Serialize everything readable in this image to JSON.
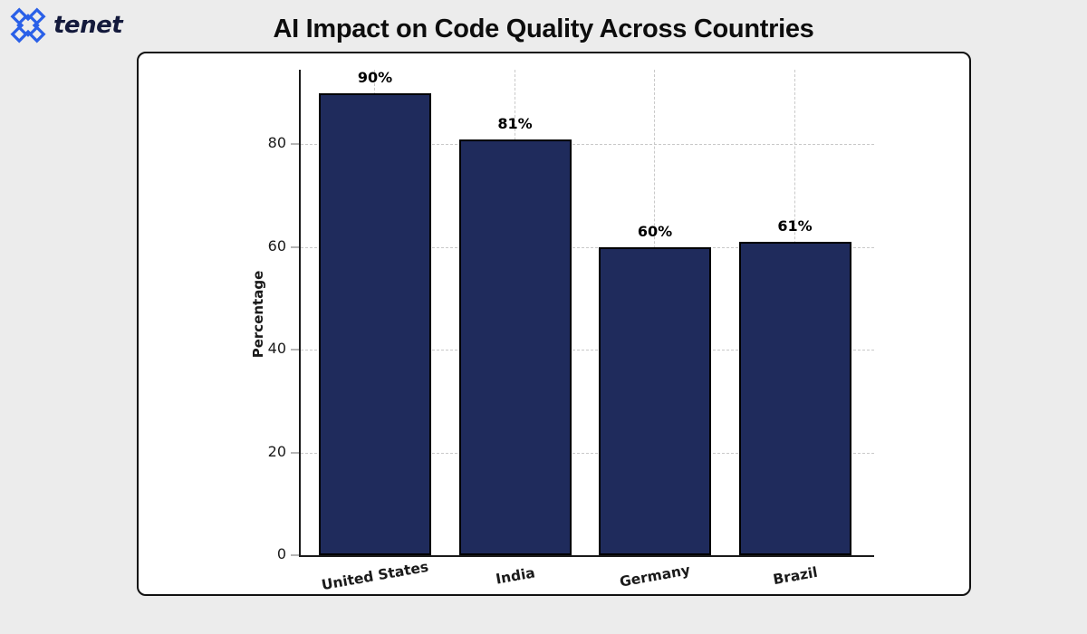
{
  "brand": {
    "wordmark": "tenet",
    "icon": "tenet-pinwheel-logo-icon",
    "icon_color": "#2a60e8",
    "wordmark_color": "#141a3c"
  },
  "header": {
    "title": "AI Impact on Code Quality Across Countries"
  },
  "chart_data": {
    "type": "bar",
    "title": "AI Impact on Code Quality Across Countries",
    "categories": [
      "United States",
      "India",
      "Germany",
      "Brazil"
    ],
    "values": [
      90,
      81,
      60,
      61
    ],
    "value_labels": [
      "90%",
      "81%",
      "60%",
      "61%"
    ],
    "xlabel": "",
    "ylabel": "Percentage",
    "yticks": [
      0,
      20,
      40,
      60,
      80
    ],
    "ylim": [
      0,
      94.5
    ],
    "grid": "dashed-both-axes",
    "legend": "none",
    "bar_color": "#1f2b5c",
    "bar_edge_color": "#000000",
    "gridline_color": "#c9c9c9",
    "background_color": "#ffffff"
  },
  "page": {
    "background_color": "#ececec",
    "card_border_color": "#111111"
  }
}
